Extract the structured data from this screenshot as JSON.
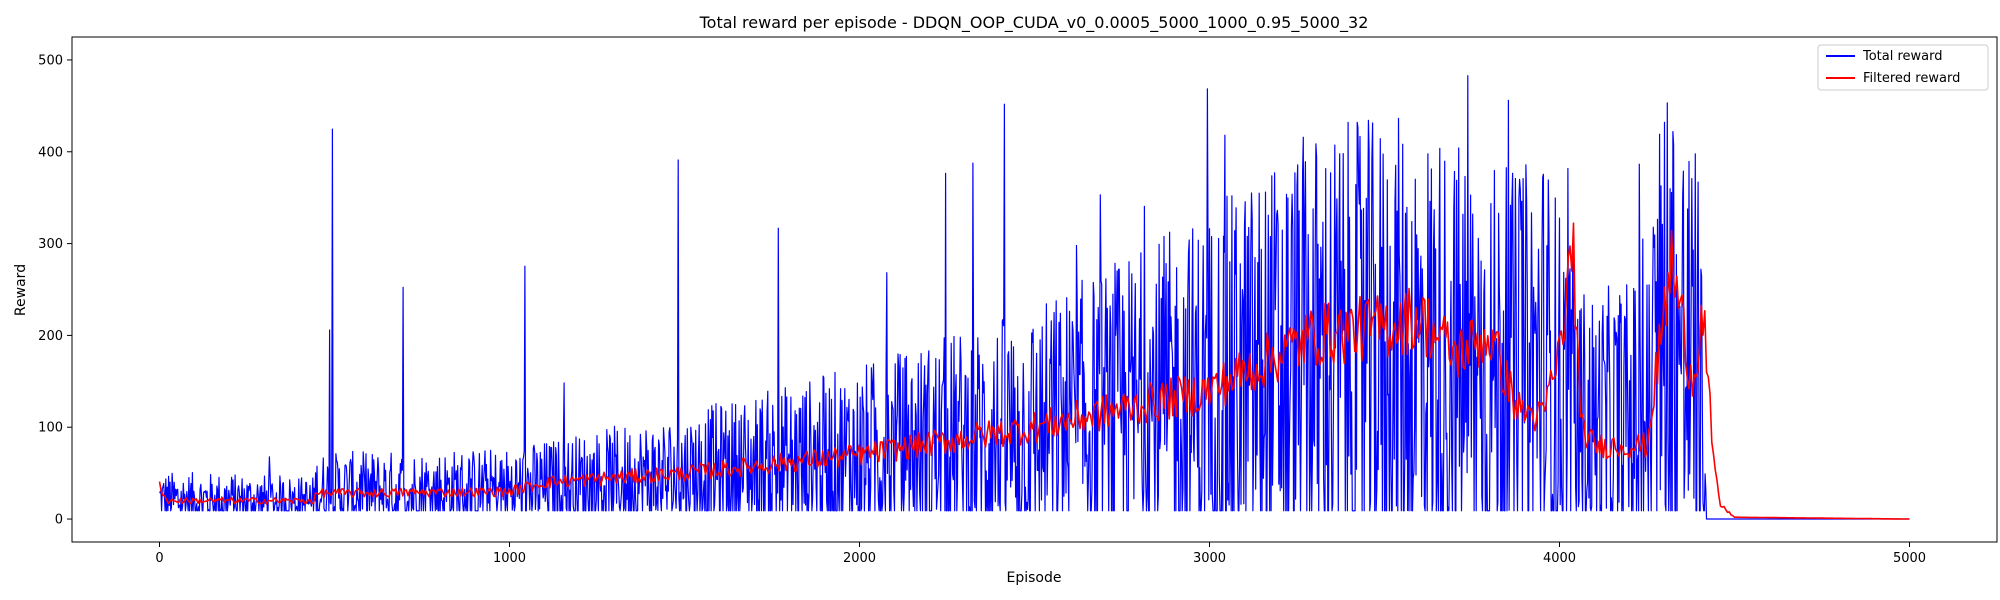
{
  "chart_data": {
    "type": "line",
    "title": "Total reward per episode - DDQN_OOP_CUDA_v0_0.0005_5000_1000_0.95_5000_32",
    "xlabel": "Episode",
    "ylabel": "Reward",
    "xlim": [
      -250,
      5250
    ],
    "ylim": [
      -25,
      525
    ],
    "xticks": [
      0,
      1000,
      2000,
      3000,
      4000,
      5000
    ],
    "yticks": [
      0,
      100,
      200,
      300,
      400,
      500
    ],
    "grid": false,
    "legend_position": "top-right",
    "series": [
      {
        "name": "Total reward",
        "color": "#0000ff",
        "style": "noisy",
        "x": [
          0,
          440,
          450,
          1000,
          1500,
          2000,
          2500,
          3000,
          3300,
          3600,
          3880,
          3950,
          4060,
          4100,
          4250,
          4300,
          4400,
          4420,
          5000
        ],
        "y": [
          20,
          18,
          28,
          30,
          45,
          65,
          90,
          130,
          165,
          170,
          145,
          160,
          100,
          95,
          105,
          200,
          150,
          0,
          0
        ]
      },
      {
        "name": "Filtered reward",
        "color": "#ff0000",
        "style": "smooth",
        "x": [
          0,
          20,
          440,
          450,
          1000,
          1100,
          1500,
          2000,
          2500,
          3000,
          3300,
          3500,
          3600,
          3700,
          3800,
          3880,
          3950,
          4000,
          4040,
          4060,
          4100,
          4250,
          4280,
          4320,
          4380,
          4410,
          4440,
          4460,
          4500,
          5000
        ],
        "y": [
          40,
          20,
          20,
          28,
          30,
          40,
          50,
          70,
          100,
          140,
          200,
          210,
          220,
          180,
          200,
          120,
          110,
          180,
          300,
          100,
          80,
          80,
          170,
          280,
          150,
          230,
          60,
          15,
          2,
          0
        ]
      }
    ]
  }
}
